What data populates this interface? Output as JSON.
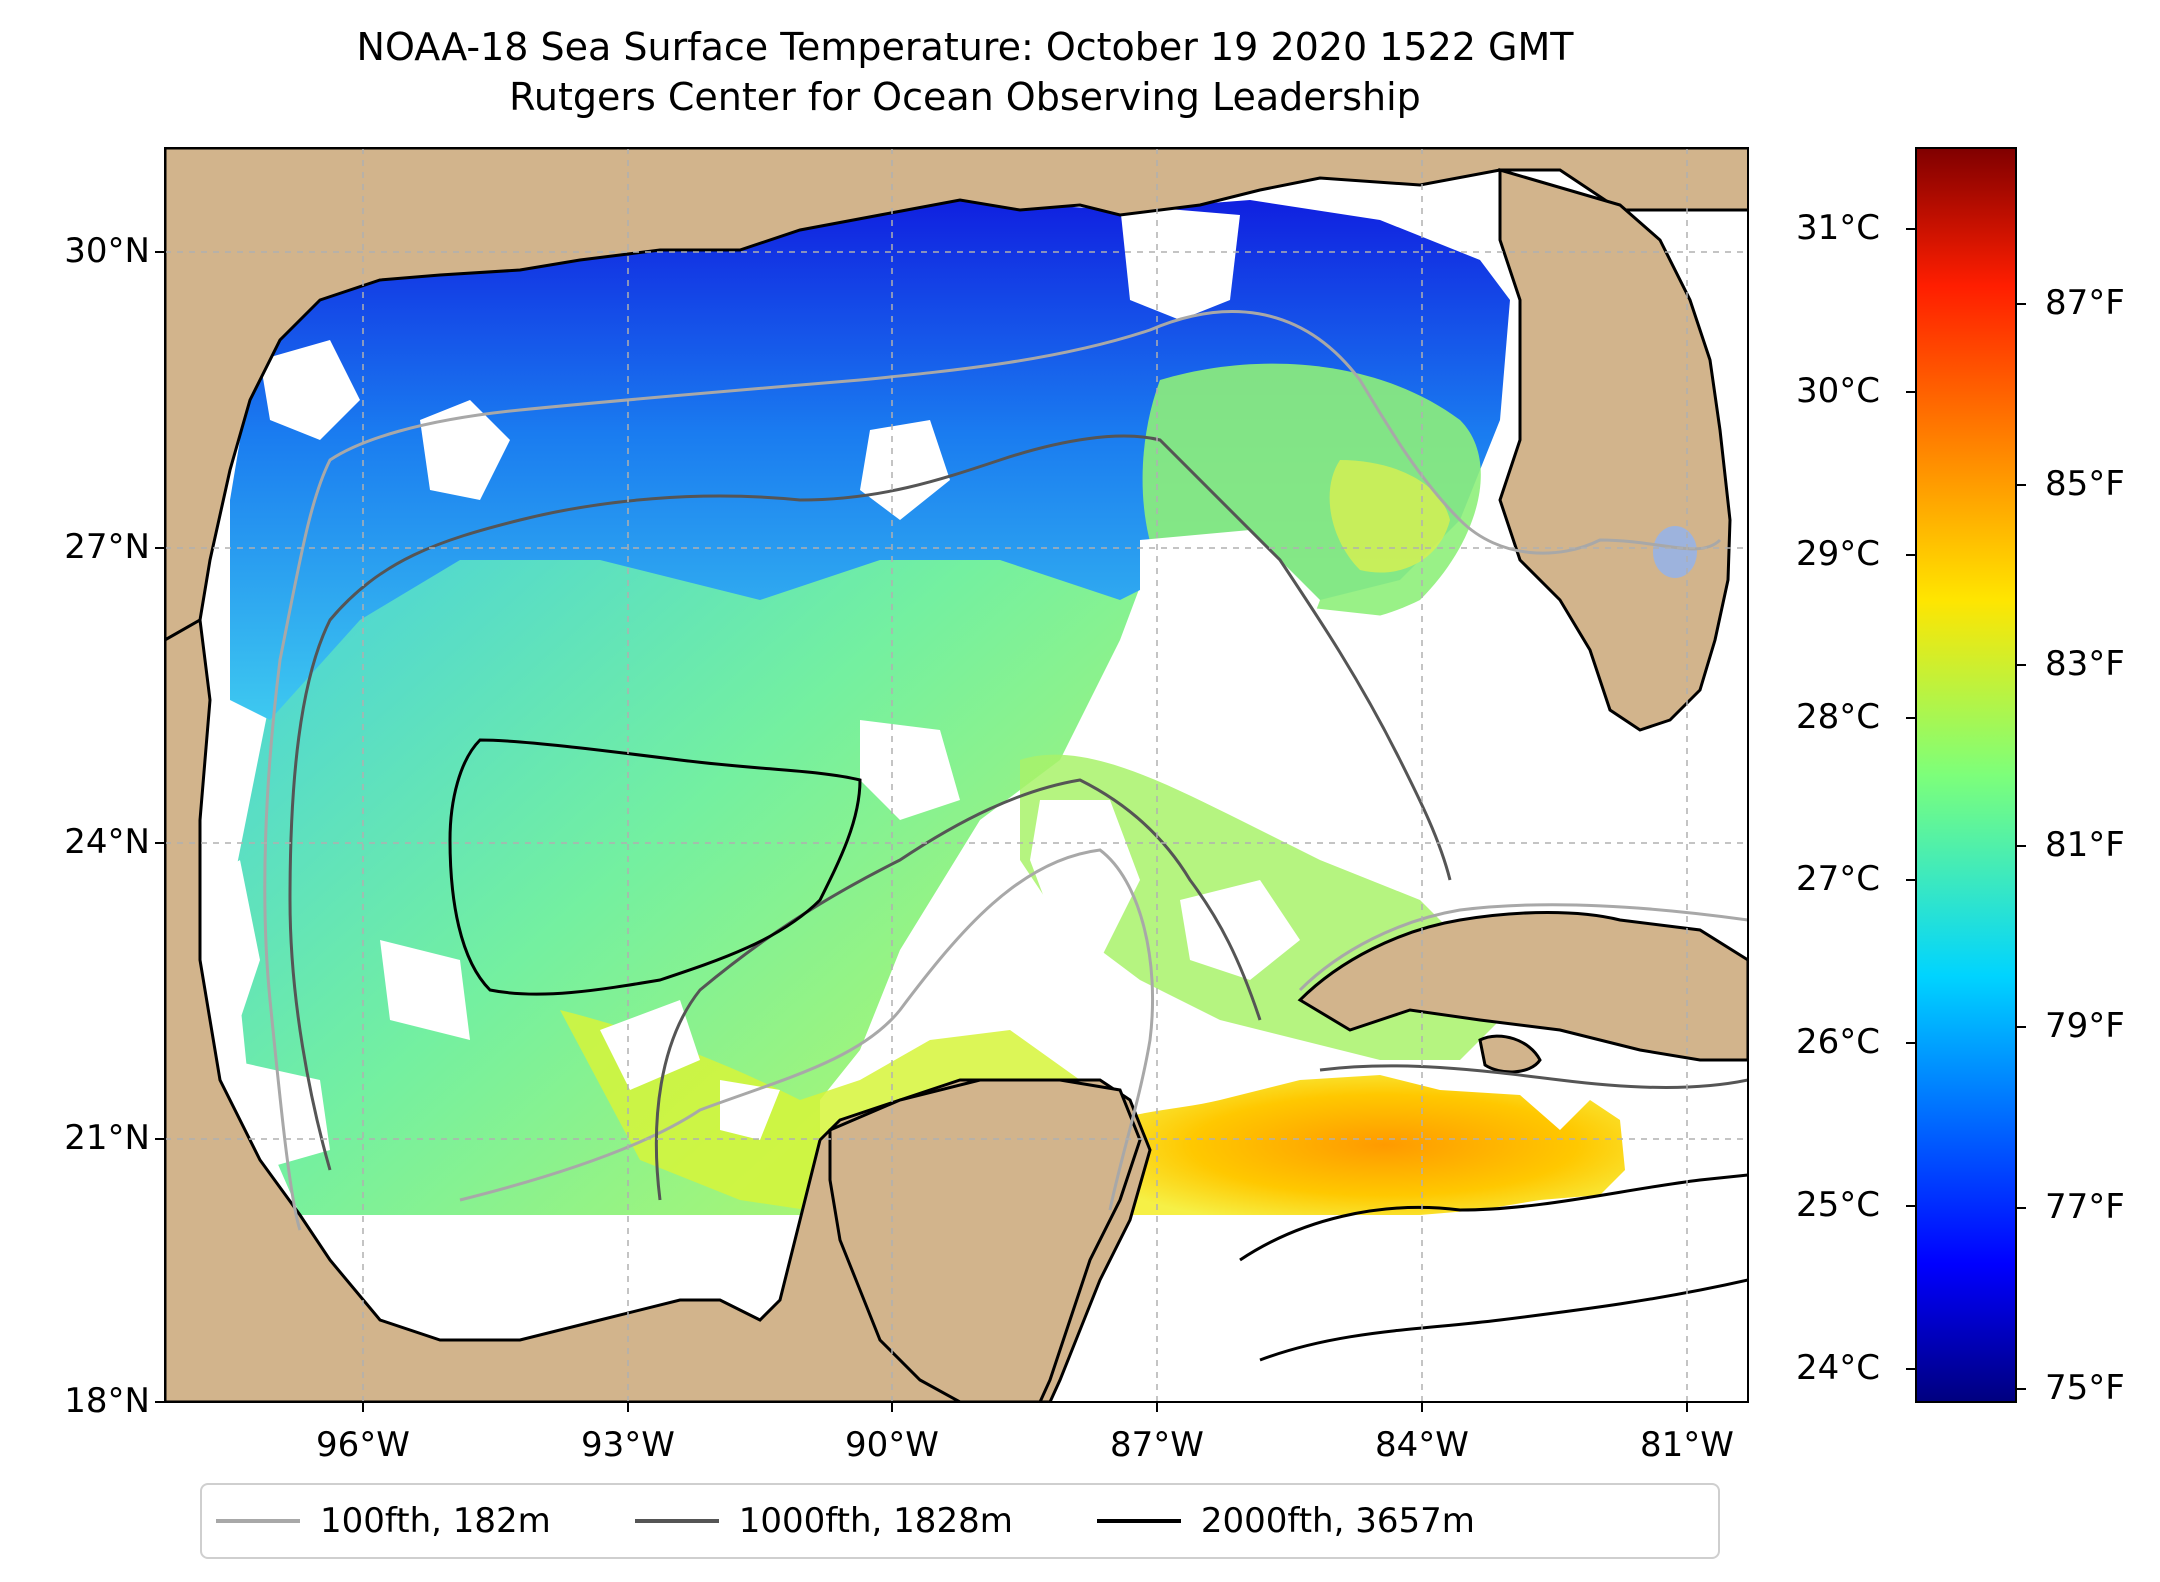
{
  "title": {
    "line1": "NOAA-18 Sea Surface Temperature: October 19 2020 1522 GMT",
    "line2": "Rutgers Center for Ocean Observing Leadership"
  },
  "chart_data": {
    "type": "heatmap",
    "title": "NOAA-18 Sea Surface Temperature: October 19 2020 1522 GMT",
    "subtitle": "Rutgers Center for Ocean Observing Leadership",
    "colormap": "jet",
    "x_extent_deg": [
      -98.0,
      -80.4
    ],
    "y_extent_deg": [
      18.0,
      31.0
    ],
    "lat_ticks": [
      "30°N",
      "27°N",
      "24°N",
      "21°N",
      "18°N"
    ],
    "lat_values": [
      30,
      27,
      24,
      21,
      18
    ],
    "lon_ticks": [
      "96°W",
      "93°W",
      "90°W",
      "87°W",
      "84°W",
      "81°W"
    ],
    "lon_values": [
      -96,
      -93,
      -90,
      -87,
      -84,
      -81
    ],
    "colorbar": {
      "celsius_ticks": [
        "31°C",
        "30°C",
        "29°C",
        "28°C",
        "27°C",
        "26°C",
        "25°C",
        "24°C"
      ],
      "celsius_values": [
        31,
        30,
        29,
        28,
        27,
        26,
        25,
        24
      ],
      "fahrenheit_ticks": [
        "87°F",
        "85°F",
        "83°F",
        "81°F",
        "79°F",
        "77°F",
        "75°F"
      ],
      "fahrenheit_values": [
        87,
        85,
        83,
        81,
        79,
        77,
        75
      ],
      "range_c": [
        23.8,
        31.5
      ]
    },
    "legend": [
      {
        "label": "100fth, 182m",
        "color": "#a8a8a8"
      },
      {
        "label": "1000fth, 1828m",
        "color": "#555555"
      },
      {
        "label": "2000fth, 3657m",
        "color": "#000000"
      }
    ],
    "legend_position": "bottom-center"
  },
  "colors": {
    "land": "#d2b48c",
    "lake": "#9db3dd",
    "grid": "#b0b0b0",
    "nodata": "#ffffff"
  }
}
